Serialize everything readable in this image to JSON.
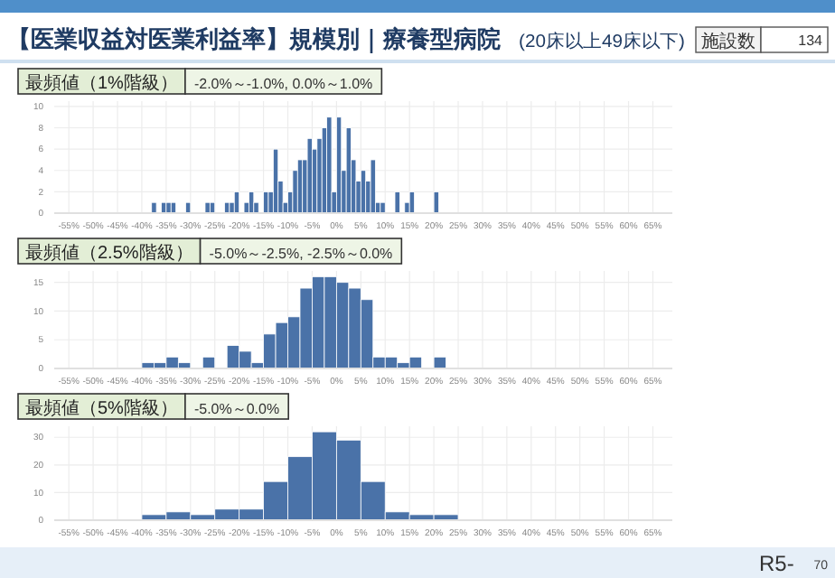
{
  "chart_data": [
    {
      "type": "histogram",
      "title": "【医業収益対医業利益率】規模別｜療養型病院",
      "subtitle": "(20床以上49床以下)",
      "annotations": [
        "最頻値（1%階級）",
        "-2.0%～-1.0%, 0.0%～1.0%",
        "施設数",
        "134"
      ],
      "bins": [
        -38,
        -37,
        -36,
        -35,
        -34,
        -33,
        -32,
        -31,
        -30,
        -29,
        -28,
        -27,
        -26,
        -25,
        -24,
        -23,
        -22,
        -21,
        -20,
        -19,
        -18,
        -17,
        -16,
        -15,
        -14,
        -13,
        -12,
        -11,
        -10,
        -9,
        -8,
        -7,
        -6,
        -5,
        -4,
        -3,
        -2,
        -1,
        0,
        1,
        2,
        3,
        4,
        5,
        6,
        7,
        8,
        9,
        10,
        11,
        12,
        13,
        14,
        15,
        16,
        17,
        18,
        19,
        20,
        21
      ],
      "values": [
        1,
        0,
        1,
        1,
        1,
        0,
        0,
        1,
        0,
        0,
        0,
        1,
        1,
        0,
        0,
        1,
        1,
        2,
        0,
        1,
        2,
        1,
        0,
        2,
        2,
        6,
        3,
        1,
        2,
        4,
        5,
        5,
        7,
        6,
        7,
        8,
        9,
        2,
        9,
        4,
        8,
        5,
        3,
        4,
        3,
        5,
        1,
        1,
        0,
        0,
        2,
        0,
        1,
        2,
        0,
        0,
        0,
        0,
        2
      ],
      "color": "#4a72a8",
      "xlim": [
        -58,
        69
      ],
      "ylim": [
        0,
        10.5
      ],
      "yticks": [
        0,
        2,
        4,
        6,
        8,
        10
      ],
      "grid": true,
      "xticks": [
        {
          "value": -55,
          "label": "-55%"
        },
        {
          "value": -50,
          "label": "-50%"
        },
        {
          "value": -45,
          "label": "-45%"
        },
        {
          "value": -40,
          "label": "-40%"
        },
        {
          "value": -35,
          "label": "-35%"
        },
        {
          "value": -30,
          "label": "-30%"
        },
        {
          "value": -25,
          "label": "-25%"
        },
        {
          "value": -20,
          "label": "-20%"
        },
        {
          "value": -15,
          "label": "-15%"
        },
        {
          "value": -10,
          "label": "-10%"
        },
        {
          "value": -5,
          "label": "-5%"
        },
        {
          "value": 0,
          "label": "0%"
        },
        {
          "value": 5,
          "label": "5%"
        },
        {
          "value": 10,
          "label": "10%"
        },
        {
          "value": 15,
          "label": "15%"
        },
        {
          "value": 20,
          "label": "20%"
        },
        {
          "value": 25,
          "label": "25%"
        },
        {
          "value": 30,
          "label": "30%"
        },
        {
          "value": 35,
          "label": "35%"
        },
        {
          "value": 40,
          "label": "40%"
        },
        {
          "value": 45,
          "label": "45%"
        },
        {
          "value": 50,
          "label": "50%"
        },
        {
          "value": 55,
          "label": "55%"
        },
        {
          "value": 60,
          "label": "60%"
        },
        {
          "value": 65,
          "label": "65%"
        }
      ]
    },
    {
      "type": "histogram",
      "annotations": [
        "最頻値（2.5%階級）",
        "-5.0%～-2.5%, -2.5%～0.0%"
      ],
      "bins": [
        -40,
        -37.5,
        -35,
        -32.5,
        -30,
        -27.5,
        -25,
        -22.5,
        -20,
        -17.5,
        -15,
        -12.5,
        -10,
        -7.5,
        -5,
        -2.5,
        0,
        2.5,
        5,
        7.5,
        10,
        12.5,
        15,
        17.5,
        20,
        22.5
      ],
      "values": [
        1,
        1,
        2,
        1,
        0,
        2,
        0,
        4,
        3,
        1,
        6,
        8,
        9,
        14,
        16,
        16,
        15,
        14,
        12,
        2,
        2,
        1,
        2,
        0,
        2
      ],
      "color": "#4a72a8",
      "xlim": [
        -58,
        69
      ],
      "ylim": [
        0,
        17
      ],
      "yticks": [
        0,
        5,
        10,
        15
      ],
      "grid": true,
      "xticks": [
        {
          "value": -55,
          "label": "-55%"
        },
        {
          "value": -50,
          "label": "-50%"
        },
        {
          "value": -45,
          "label": "-45%"
        },
        {
          "value": -40,
          "label": "-40%"
        },
        {
          "value": -35,
          "label": "-35%"
        },
        {
          "value": -30,
          "label": "-30%"
        },
        {
          "value": -25,
          "label": "-25%"
        },
        {
          "value": -20,
          "label": "-20%"
        },
        {
          "value": -15,
          "label": "-15%"
        },
        {
          "value": -10,
          "label": "-10%"
        },
        {
          "value": -5,
          "label": "-5%"
        },
        {
          "value": 0,
          "label": "0%"
        },
        {
          "value": 5,
          "label": "5%"
        },
        {
          "value": 10,
          "label": "10%"
        },
        {
          "value": 15,
          "label": "15%"
        },
        {
          "value": 20,
          "label": "20%"
        },
        {
          "value": 25,
          "label": "25%"
        },
        {
          "value": 30,
          "label": "30%"
        },
        {
          "value": 35,
          "label": "35%"
        },
        {
          "value": 40,
          "label": "40%"
        },
        {
          "value": 45,
          "label": "45%"
        },
        {
          "value": 50,
          "label": "50%"
        },
        {
          "value": 55,
          "label": "55%"
        },
        {
          "value": 60,
          "label": "60%"
        },
        {
          "value": 65,
          "label": "65%"
        }
      ]
    },
    {
      "type": "histogram",
      "annotations": [
        "最頻値（5%階級）",
        "-5.0%～0.0%",
        "R5-",
        "70"
      ],
      "bins": [
        -40,
        -35,
        -30,
        -25,
        -20,
        -15,
        -10,
        -5,
        0,
        5,
        10,
        15,
        20,
        25
      ],
      "values": [
        2,
        3,
        2,
        4,
        4,
        14,
        23,
        32,
        29,
        14,
        3,
        2,
        2
      ],
      "color": "#4a72a8",
      "xlim": [
        -58,
        69
      ],
      "ylim": [
        0,
        34
      ],
      "yticks": [
        0,
        10,
        20,
        30
      ],
      "grid": true,
      "xticks": [
        {
          "value": -55,
          "label": "-55%"
        },
        {
          "value": -50,
          "label": "-50%"
        },
        {
          "value": -45,
          "label": "-45%"
        },
        {
          "value": -40,
          "label": "-40%"
        },
        {
          "value": -35,
          "label": "-35%"
        },
        {
          "value": -30,
          "label": "-30%"
        },
        {
          "value": -25,
          "label": "-25%"
        },
        {
          "value": -20,
          "label": "-20%"
        },
        {
          "value": -15,
          "label": "-15%"
        },
        {
          "value": -10,
          "label": "-10%"
        },
        {
          "value": -5,
          "label": "-5%"
        },
        {
          "value": 0,
          "label": "0%"
        },
        {
          "value": 5,
          "label": "5%"
        },
        {
          "value": 10,
          "label": "10%"
        },
        {
          "value": 15,
          "label": "15%"
        },
        {
          "value": 20,
          "label": "20%"
        },
        {
          "value": 25,
          "label": "25%"
        },
        {
          "value": 30,
          "label": "30%"
        },
        {
          "value": 35,
          "label": "35%"
        },
        {
          "value": 40,
          "label": "40%"
        },
        {
          "value": 45,
          "label": "45%"
        },
        {
          "value": 50,
          "label": "50%"
        },
        {
          "value": 55,
          "label": "55%"
        },
        {
          "value": 60,
          "label": "60%"
        },
        {
          "value": 65,
          "label": "65%"
        }
      ]
    }
  ]
}
